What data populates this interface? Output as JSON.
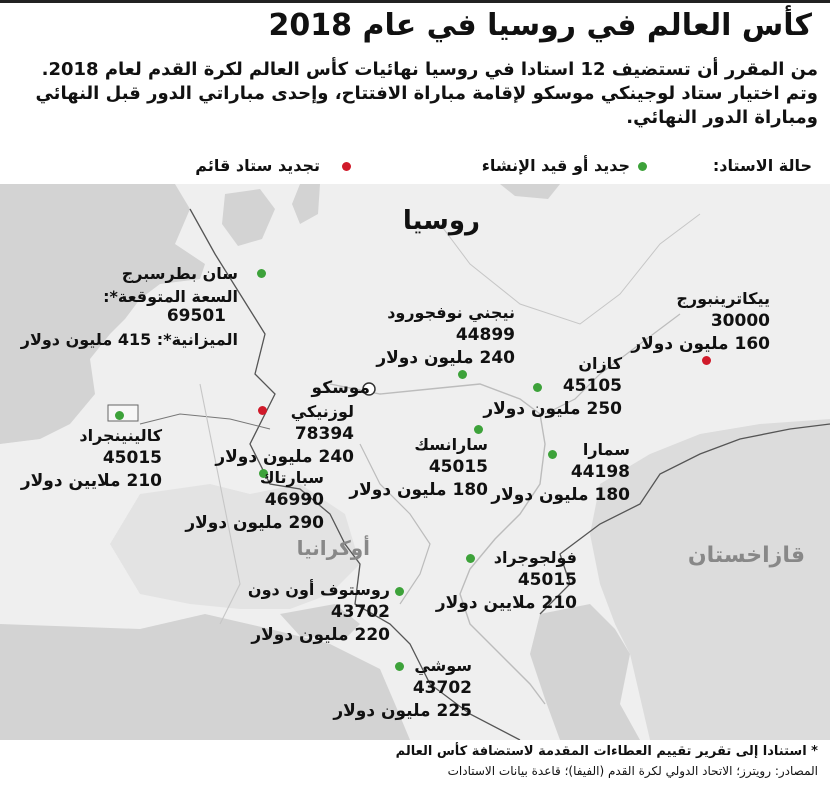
{
  "header": {
    "title": "كأس العالم في روسيا في عام 2018",
    "intro": "من المقرر أن تستضيف 12 استادا في روسيا نهائيات كأس العالم لكرة القدم لعام 2018. وتم اختيار ستاد لوجينكي موسكو لإقامة مباراة الافتتاح، وإحدى مباراتي الدور قبل النهائي ومباراة الدور النهائي."
  },
  "legend": {
    "label": "حالة الاستاد:",
    "new": "جديد أو قيد الإنشاء",
    "renovation": "تجديد ستاد قائم",
    "colors": {
      "new": "#3da23a",
      "renovation": "#d01a2a"
    }
  },
  "map": {
    "countries": {
      "russia": "روسيا",
      "ukraine": "أوكرانيا",
      "kazakhstan": "قازاخستان"
    },
    "capital": "موسكو",
    "cities": {
      "stpetersburg": {
        "name": "سان بطرسبرج",
        "capacity_label": "السعة المتوقعة*:",
        "capacity": "69501",
        "budget_label": "الميزانية*:",
        "budget": "415 مليون دولار",
        "status": "new"
      },
      "kaliningrad": {
        "name": "كالينينجراد",
        "capacity": "45015",
        "budget": "210 ملايين دولار",
        "status": "new"
      },
      "luzhniki": {
        "name": "لوزنيكي",
        "capacity": "78394",
        "budget": "240 مليون دولار",
        "status": "renovation"
      },
      "spartak": {
        "name": "سبارتاك",
        "capacity": "46990",
        "budget": "290 مليون دولار",
        "status": "new"
      },
      "nizhny": {
        "name": "نيجني نوفجورود",
        "capacity": "44899",
        "budget": "240 مليون دولار",
        "status": "new"
      },
      "kazan": {
        "name": "كازان",
        "capacity": "45105",
        "budget": "250 مليون دولار",
        "status": "new"
      },
      "yekaterinburg": {
        "name": "ييكاترينبورج",
        "capacity": "30000",
        "budget": "160 مليون دولار",
        "status": "renovation"
      },
      "saransk": {
        "name": "سارانسك",
        "capacity": "45015",
        "budget": "180 مليون دولار",
        "status": "new"
      },
      "samara": {
        "name": "سمارا",
        "capacity": "44198",
        "budget": "180 مليون دولار",
        "status": "new"
      },
      "volgograd": {
        "name": "فولجوجراد",
        "capacity": "45015",
        "budget": "210 ملايين دولار",
        "status": "new"
      },
      "rostov": {
        "name": "روستوف أون دون",
        "capacity": "43702",
        "budget": "220 مليون دولار",
        "status": "new"
      },
      "sochi": {
        "name": "سوشي",
        "capacity": "43702",
        "budget": "225 مليون دولار",
        "status": "new"
      }
    }
  },
  "footer": {
    "note": "* استنادا إلى تقرير تقييم العطاءات المقدمة لاستضافة كأس العالم",
    "sources": "المصادر: رويترز؛ الاتحاد الدولي لكرة القدم (الفيفا)؛ قاعدة بيانات الاستادات"
  }
}
